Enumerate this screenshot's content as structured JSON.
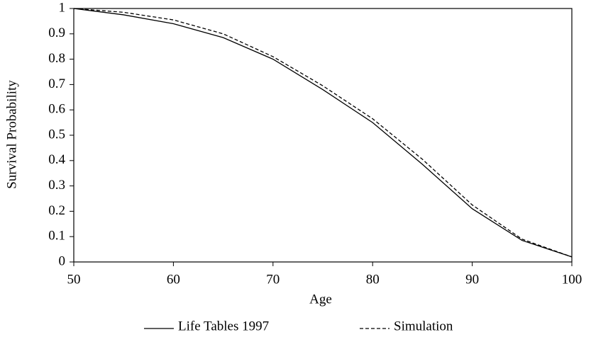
{
  "chart_data": {
    "type": "line",
    "x_label": "Age",
    "y_label": "Survival Probability",
    "x": [
      50,
      55,
      60,
      65,
      70,
      75,
      80,
      85,
      90,
      95,
      100
    ],
    "series": [
      {
        "name": "Life Tables 1997",
        "color": "#000000",
        "dash": "solid",
        "values": [
          1.0,
          0.975,
          0.94,
          0.885,
          0.8,
          0.68,
          0.55,
          0.385,
          0.21,
          0.085,
          0.02
        ]
      },
      {
        "name": "Simulation",
        "color": "#000000",
        "dash": "dashed",
        "values": [
          1.0,
          0.985,
          0.955,
          0.9,
          0.81,
          0.695,
          0.565,
          0.405,
          0.225,
          0.09,
          0.02
        ]
      }
    ],
    "xlim": [
      50,
      100
    ],
    "xticks": [
      50,
      60,
      70,
      80,
      90,
      100
    ],
    "ylim": [
      0,
      1
    ],
    "yticks": [
      0,
      0.1,
      0.2,
      0.3,
      0.4,
      0.5,
      0.6,
      0.7,
      0.8,
      0.9,
      1
    ],
    "grid": false,
    "legend": "bottom"
  }
}
